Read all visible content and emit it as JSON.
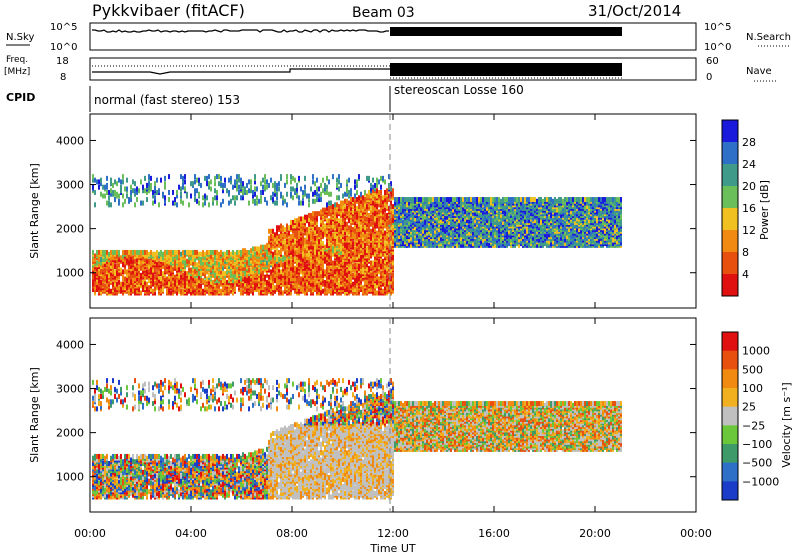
{
  "header": {
    "station": "Pykkvibaer (fitACF)",
    "beam": "Beam 03",
    "date": "31/Oct/2014"
  },
  "nsky_panel": {
    "left_label": "N.Sky",
    "right_label": "N.Search",
    "left_ticks": [
      "10^5",
      "10^0"
    ],
    "right_ticks": [
      "10^5",
      "10^0"
    ]
  },
  "freq_panel": {
    "left_label_1": "Freq.",
    "left_label_2": "[MHz]",
    "right_label": "Nave",
    "left_ticks": [
      "18",
      "8"
    ],
    "right_ticks": [
      "60",
      "0"
    ]
  },
  "cpid": {
    "label": "CPID",
    "mode_1": "normal (fast stereo) 153",
    "mode_2": "stereoscan Losse 160"
  },
  "colors": {
    "power_scale": [
      "#1a1adc",
      "#2e6fc8",
      "#3f9a8a",
      "#6bbf5a",
      "#f0c020",
      "#f08a10",
      "#e85010",
      "#e01010"
    ],
    "velocity_scale": [
      "#1a3cc8",
      "#2e6fc8",
      "#3f9a6a",
      "#6bc83a",
      "#c0c0c0",
      "#f0b020",
      "#f08a10",
      "#e85010",
      "#e01010"
    ]
  },
  "chart_data": [
    {
      "type": "heatmap",
      "panel": "power",
      "ylabel": "Slant Range [km]",
      "yticks": [
        "4000",
        "3000",
        "2000",
        "1000"
      ],
      "ylim": [
        200,
        4600
      ],
      "xticks": [
        "00:00",
        "04:00",
        "08:00",
        "12:00",
        "16:00",
        "20:00",
        "00:00"
      ],
      "xlim": [
        0,
        24
      ],
      "colorbar_label": "Power [dB]",
      "colorbar_ticks": [
        "28",
        "24",
        "20",
        "16",
        "12",
        "8",
        "4"
      ],
      "regions": [
        {
          "t_start": 0.1,
          "t_end": 12.0,
          "r_min": 500,
          "r_max": 1500,
          "level": "high"
        },
        {
          "t_start": 7.0,
          "t_end": 12.0,
          "r_min": 1000,
          "r_max": 3000,
          "level": "high"
        },
        {
          "t_start": 12.0,
          "t_end": 21.2,
          "r_min": 1600,
          "r_max": 2700,
          "level": "low"
        }
      ]
    },
    {
      "type": "heatmap",
      "panel": "velocity",
      "ylabel": "Slant Range [km]",
      "yticks": [
        "4000",
        "3000",
        "2000",
        "1000"
      ],
      "ylim": [
        200,
        4600
      ],
      "xticks": [
        "00:00",
        "04:00",
        "08:00",
        "12:00",
        "16:00",
        "20:00",
        "00:00"
      ],
      "xlim": [
        0,
        24
      ],
      "xlabel": "Time UT",
      "colorbar_label": "Velocity [m s⁻¹]",
      "colorbar_ticks": [
        "1000",
        "500",
        "100",
        "25",
        "−25",
        "−100",
        "−500",
        "−1000"
      ]
    }
  ]
}
